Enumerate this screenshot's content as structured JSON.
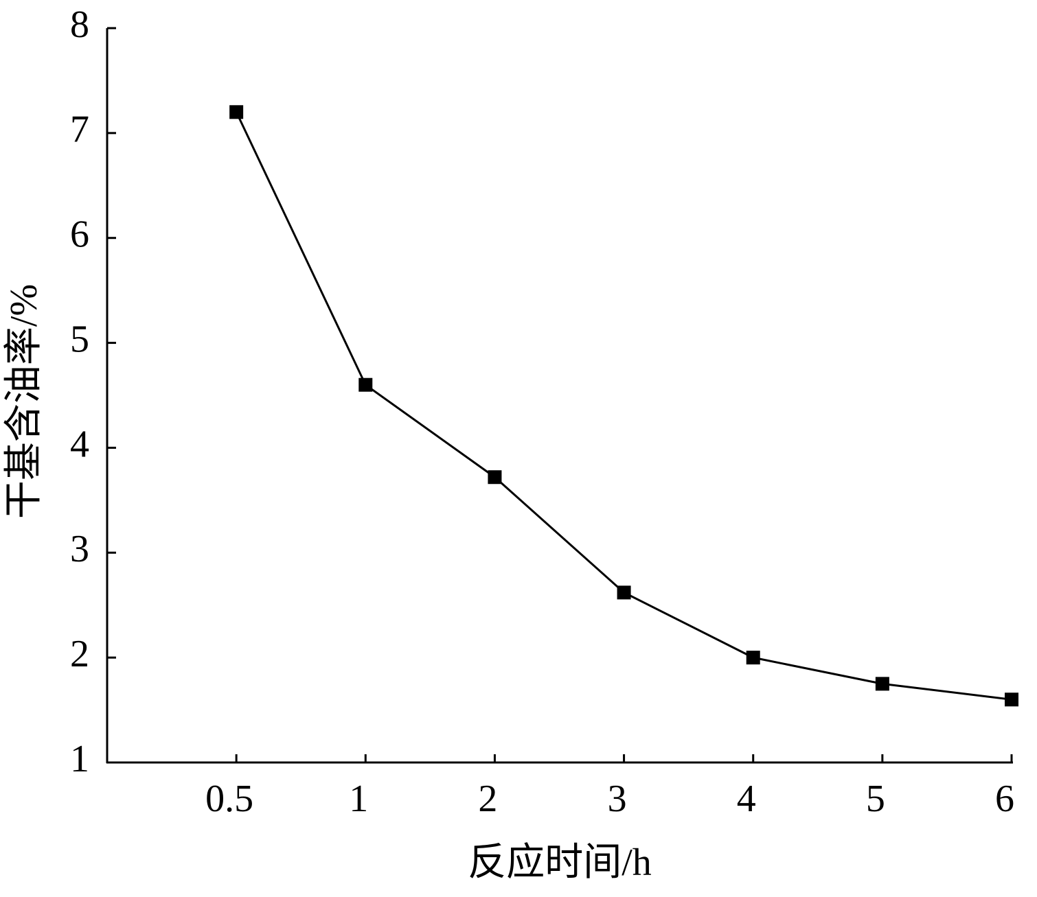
{
  "chart_data": {
    "type": "line",
    "x_label": "反应时间/h",
    "y_label": "干基含油率/%",
    "categories": [
      "0.5",
      "1",
      "2",
      "3",
      "4",
      "5",
      "6"
    ],
    "series": [
      {
        "name": "干基含油率",
        "color": "#000000",
        "values": [
          7.2,
          4.6,
          3.72,
          2.62,
          2.0,
          1.75,
          1.6
        ]
      }
    ],
    "ylim": [
      1,
      8
    ],
    "yticks": [
      1,
      2,
      3,
      4,
      5,
      6,
      7,
      8
    ]
  }
}
